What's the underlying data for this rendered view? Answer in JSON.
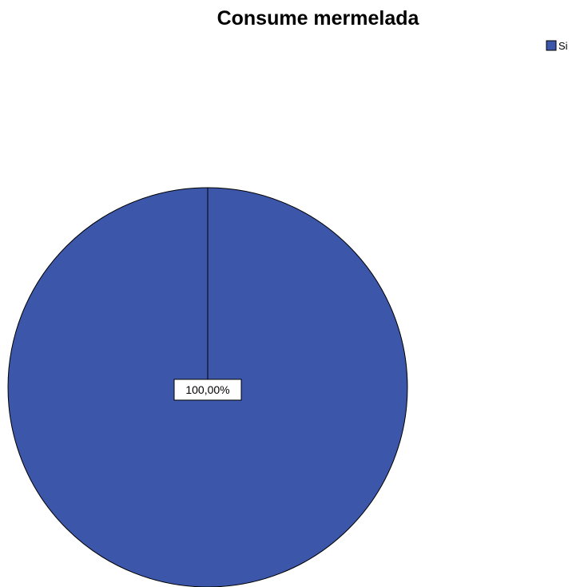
{
  "chart_data": {
    "type": "pie",
    "title": "Consume mermelada",
    "categories": [
      "Si"
    ],
    "values": [
      100.0
    ],
    "data_labels": [
      "100,00%"
    ],
    "colors": [
      "#3c56aa"
    ],
    "legend": {
      "placement": "top-right",
      "entries": [
        "Si"
      ]
    },
    "start_angle": "12 o'clock",
    "direction": "clockwise"
  }
}
